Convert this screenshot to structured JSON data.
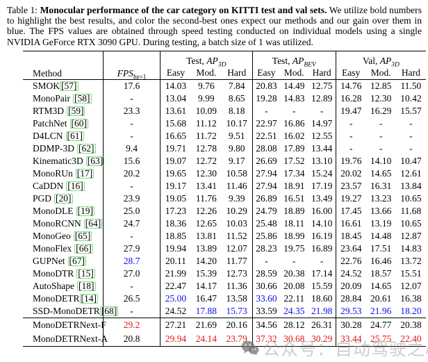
{
  "caption": {
    "prefix": "Table 1: ",
    "bold": "Monocular performance of the car category on KITTI test and val sets.",
    "rest": " We utilize bold numbers to highlight the best results, and color the second-best ones expect our methods and our gain over them in blue. The FPS values are obtained through speed testing conducted on individual models using a single NVIDIA GeForce RTX 3090 GPU. During testing, a batch size of 1 was utilized."
  },
  "colors": {
    "blue": "#0d0dee",
    "red": "#e01515",
    "cite_border": "#7ddc7d"
  },
  "table": {
    "header": {
      "method": "Method",
      "fps": {
        "main": "FPS",
        "sub_it": "bz",
        "sub_eq": "=1"
      },
      "groups": [
        {
          "prefix": "Test, ",
          "ap": "AP",
          "sub": "3D",
          "cols": [
            "Easy",
            "Mod.",
            "Hard"
          ]
        },
        {
          "prefix": "Test, ",
          "ap": "AP",
          "sub": "BEV",
          "cols": [
            "Easy",
            "Mod.",
            "Hard"
          ]
        },
        {
          "prefix": "Val, ",
          "ap": "AP",
          "sub": "3D",
          "cols": [
            "Easy",
            "Mod.",
            "Hard"
          ]
        }
      ]
    },
    "rows": [
      {
        "method": "SMOK",
        "cite": "57",
        "sp": false,
        "v": [
          "17.6",
          "14.03",
          "9.76",
          "7.84",
          "20.83",
          "14.49",
          "12.75",
          "14.76",
          "12.85",
          "11.50"
        ],
        "hl": {}
      },
      {
        "method": "MonoPair",
        "cite": "58",
        "sp": true,
        "v": [
          "-",
          "13.04",
          "9.99",
          "8.65",
          "19.28",
          "14.83",
          "12.89",
          "16.28",
          "12.30",
          "10.42"
        ],
        "hl": {}
      },
      {
        "method": "RTM3D",
        "cite": "59",
        "sp": true,
        "v": [
          "23.3",
          "13.61",
          "10.09",
          "8.18",
          "-",
          "-",
          "-",
          "19.47",
          "16.29",
          "15.57"
        ],
        "hl": {}
      },
      {
        "method": "PatchNet",
        "cite": "60",
        "sp": true,
        "v": [
          "-",
          "15.68",
          "11.12",
          "10.17",
          "22.97",
          "16.86",
          "14.97",
          "-",
          "-",
          "-"
        ],
        "hl": {}
      },
      {
        "method": "D4LCN",
        "cite": "61",
        "sp": true,
        "v": [
          "-",
          "16.65",
          "11.72",
          "9.51",
          "22.51",
          "16.02",
          "12.55",
          "-",
          "-",
          "-"
        ],
        "hl": {}
      },
      {
        "method": "DDMP-3D",
        "cite": "62",
        "sp": true,
        "v": [
          "9.4",
          "19.71",
          "12.78",
          "9.80",
          "28.08",
          "17.89",
          "13.44",
          "-",
          "-",
          "-"
        ],
        "hl": {}
      },
      {
        "method": "Kinematic3D",
        "cite": "63",
        "sp": true,
        "v": [
          "15.6",
          "19.07",
          "12.72",
          "9.17",
          "26.69",
          "17.52",
          "13.10",
          "19.76",
          "14.10",
          "10.47"
        ],
        "hl": {}
      },
      {
        "method": "MonoRUn",
        "cite": "17",
        "sp": true,
        "v": [
          "20.2",
          "19.65",
          "12.30",
          "10.58",
          "27.94",
          "17.34",
          "15.24",
          "20.02",
          "14.65",
          "12.61"
        ],
        "hl": {}
      },
      {
        "method": "CaDDN",
        "cite": "16",
        "sp": true,
        "v": [
          "-",
          "19.17",
          "13.41",
          "11.46",
          "27.94",
          "18.91",
          "17.19",
          "23.57",
          "16.31",
          "13.84"
        ],
        "hl": {}
      },
      {
        "method": "PGD",
        "cite": "20",
        "sp": true,
        "v": [
          "23.9",
          "19.05",
          "11.76",
          "9.39",
          "26.89",
          "16.51",
          "13.49",
          "19.27",
          "13.23",
          "10.65"
        ],
        "hl": {}
      },
      {
        "method": "MonoDLE",
        "cite": "19",
        "sp": true,
        "v": [
          "25.0",
          "17.23",
          "12.26",
          "10.29",
          "24.79",
          "18.89",
          "16.00",
          "17.45",
          "13.66",
          "11.68"
        ],
        "hl": {}
      },
      {
        "method": "MonoRCNN",
        "cite": "64",
        "sp": true,
        "v": [
          "24.7",
          "18.36",
          "12.65",
          "10.03",
          "25.48",
          "18.11",
          "14.10",
          "16.61",
          "13.19",
          "10.65"
        ],
        "hl": {}
      },
      {
        "method": "MonoGeo",
        "cite": "65",
        "sp": true,
        "v": [
          "-",
          "18.85",
          "13.81",
          "11.52",
          "25.86",
          "18.99",
          "16.19",
          "18.45",
          "14.48",
          "12.87"
        ],
        "hl": {}
      },
      {
        "method": "MonoFlex",
        "cite": "66",
        "sp": true,
        "v": [
          "27.9",
          "19.94",
          "13.89",
          "12.07",
          "28.23",
          "19.75",
          "16.89",
          "23.64",
          "17.51",
          "14.83"
        ],
        "hl": {}
      },
      {
        "method": "GUPNet",
        "cite": "67",
        "sp": true,
        "v": [
          "28.7",
          "20.11",
          "14.20",
          "11.77",
          "-",
          "-",
          "-",
          "22.76",
          "16.46",
          "13.72"
        ],
        "hl": {
          "0": "blue"
        }
      },
      {
        "method": "MonoDTR",
        "cite": "15",
        "sp": true,
        "v": [
          "27.0",
          "21.99",
          "15.39",
          "12.73",
          "28.59",
          "20.38",
          "17.14",
          "24.52",
          "18.57",
          "15.51"
        ],
        "hl": {}
      },
      {
        "method": "AutoShape",
        "cite": "18",
        "sp": true,
        "v": [
          "-",
          "22.47",
          "14.17",
          "11.36",
          "30.66",
          "20.08",
          "15.59",
          "20.09",
          "14.65",
          "12.07"
        ],
        "hl": {}
      },
      {
        "method": "MonoDETR",
        "cite": "14",
        "sp": false,
        "v": [
          "26.5",
          "25.00",
          "16.47",
          "13.58",
          "33.60",
          "22.11",
          "18.60",
          "28.84",
          "20.61",
          "16.38"
        ],
        "hl": {
          "1": "blue",
          "4": "blue"
        }
      },
      {
        "method": "SSD-MonoDETR",
        "cite": "68",
        "sp": false,
        "v": [
          "-",
          "24.52",
          "17.88",
          "15.73",
          "33.59",
          "24.35",
          "21.98",
          "29.53",
          "21.96",
          "18.20"
        ],
        "hl": {
          "2": "blue",
          "3": "blue",
          "5": "blue",
          "6": "blue",
          "7": "blue",
          "8": "blue",
          "9": "blue"
        }
      }
    ],
    "footer_rows": [
      {
        "method": "MonoDETRNext-F",
        "cite": null,
        "sp": false,
        "v": [
          "29.2",
          "27.21",
          "21.69",
          "20.16",
          "34.56",
          "28.12",
          "26.31",
          "30.28",
          "24.77",
          "20.38"
        ],
        "hl": {
          "0": "red"
        }
      },
      {
        "method": "MonoDETRNext-A",
        "cite": null,
        "sp": false,
        "v": [
          "20.8",
          "29.94",
          "24.14",
          "23.79",
          "37.32",
          "30.68",
          "30.29",
          "33.44",
          "25.75",
          "22.40"
        ],
        "hl": {
          "1": "red",
          "2": "red",
          "3": "red",
          "4": "red",
          "5": "red",
          "6": "red",
          "7": "red",
          "8": "red",
          "9": "red"
        }
      }
    ]
  },
  "watermark": {
    "icon": "wechat-icon",
    "text": "公众号：自动驾驶之心"
  }
}
